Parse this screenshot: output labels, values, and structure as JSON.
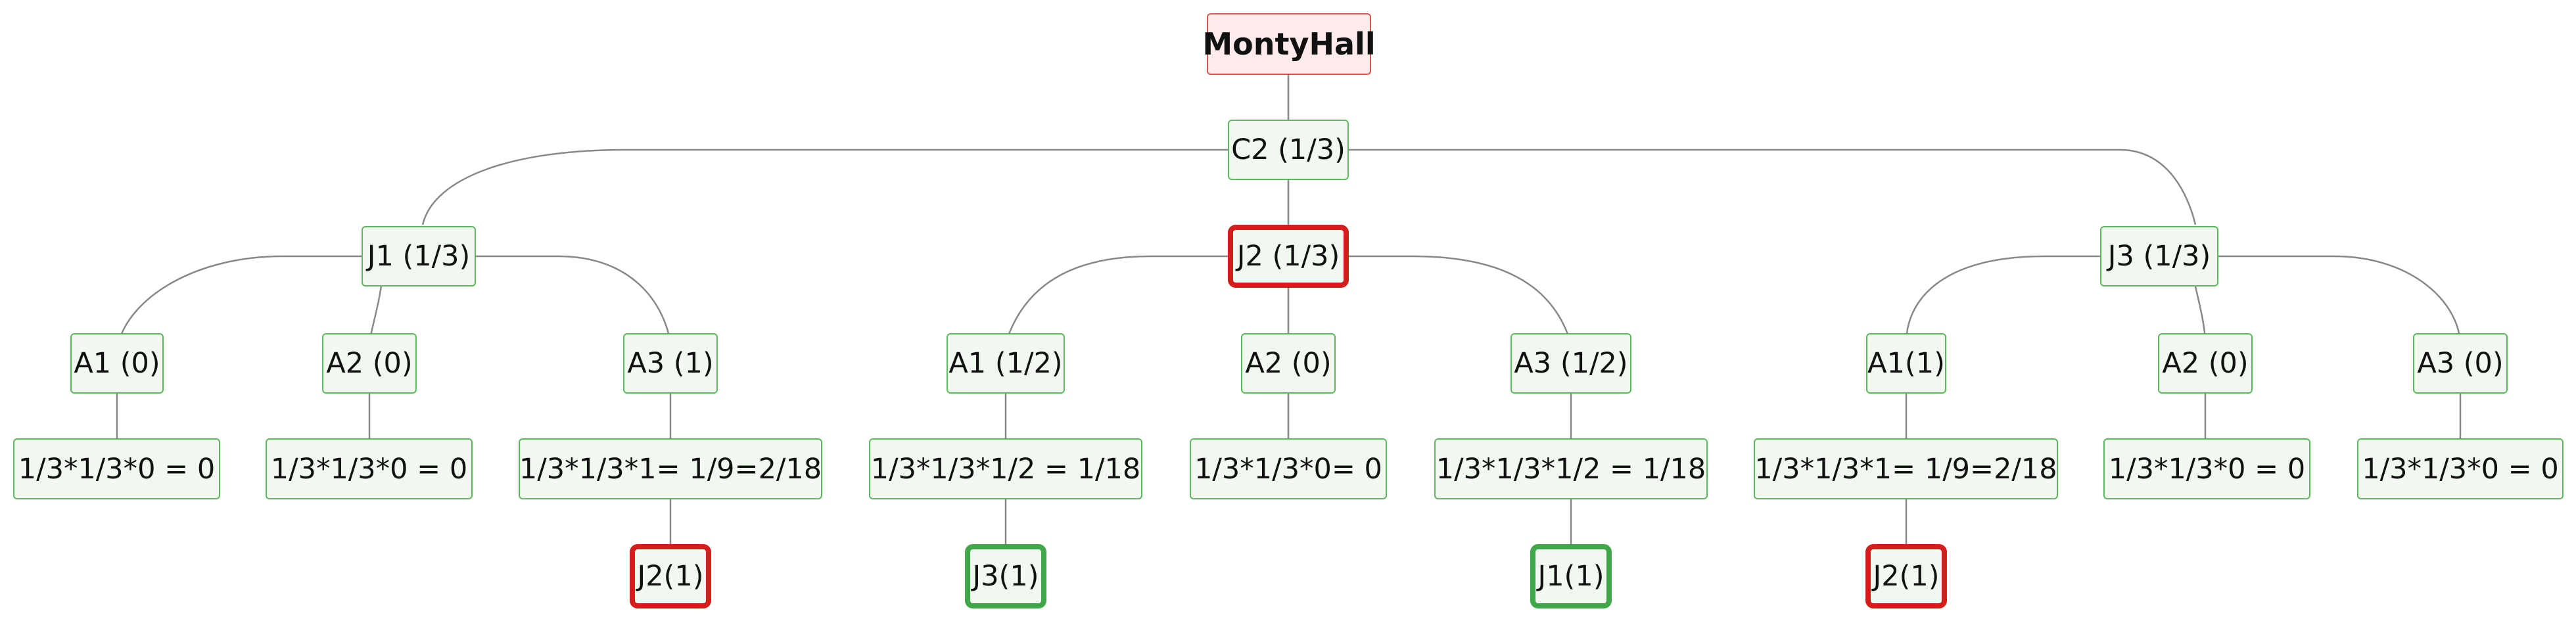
{
  "nodes": {
    "root": "MontyHall",
    "c2": "C2 (1/3)",
    "j1": "J1 (1/3)",
    "j2": "J2 (1/3)",
    "j3": "J3 (1/3)",
    "j1_a1": "A1 (0)",
    "j1_a2": "A2 (0)",
    "j1_a3": "A3 (1)",
    "j2_a1": "A1 (1/2)",
    "j2_a2": "A2 (0)",
    "j2_a3": "A3 (1/2)",
    "j3_a1": "A1(1)",
    "j3_a2": "A2 (0)",
    "j3_a3": "A3 (0)",
    "j1_a1_p": "1/3*1/3*0 = 0",
    "j1_a2_p": "1/3*1/3*0 = 0",
    "j1_a3_p": "1/3*1/3*1= 1/9=2/18",
    "j2_a1_p": "1/3*1/3*1/2 = 1/18",
    "j2_a2_p": "1/3*1/3*0= 0",
    "j2_a3_p": "1/3*1/3*1/2 = 1/18",
    "j3_a1_p": "1/3*1/3*1= 1/9=2/18",
    "j3_a2_p": "1/3*1/3*0 = 0",
    "j3_a3_p": "1/3*1/3*0 = 0",
    "leaf_j1a3": "J2(1)",
    "leaf_j2a1": "J3(1)",
    "leaf_j2a3": "J1(1)",
    "leaf_j3a1": "J2(1)"
  },
  "colors": {
    "node_fill": "#f1f8f0",
    "node_border": "#5cb85c",
    "root_fill": "#fdeaea",
    "root_border": "#d9534f",
    "highlight_red": "#d21f1b",
    "highlight_green": "#3fa64a",
    "edge": "#888888"
  }
}
